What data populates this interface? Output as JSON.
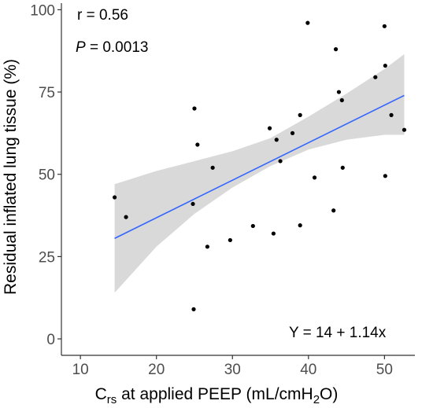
{
  "chart_data": {
    "type": "scatter",
    "xlabel": {
      "main": "C",
      "sub": "rs",
      "rest": " at applied PEEP (mL/cmH",
      "sub2": "2",
      "end": "O)"
    },
    "ylabel": "Residual inflated lung tissue (%)",
    "xlim": [
      7.5,
      54
    ],
    "ylim": [
      -5,
      102
    ],
    "x_ticks": [
      10,
      20,
      30,
      40,
      50
    ],
    "y_ticks": [
      0,
      25,
      50,
      75,
      100
    ],
    "x_tick_labels": [
      "10",
      "20",
      "30",
      "40",
      "50"
    ],
    "y_tick_labels": [
      "0",
      "25",
      "50",
      "75",
      "100"
    ],
    "grid": false,
    "points": [
      {
        "x": 14.5,
        "y": 43
      },
      {
        "x": 16,
        "y": 37
      },
      {
        "x": 24.8,
        "y": 41
      },
      {
        "x": 25,
        "y": 70
      },
      {
        "x": 25.4,
        "y": 59
      },
      {
        "x": 24.9,
        "y": 9
      },
      {
        "x": 26.7,
        "y": 28
      },
      {
        "x": 27.4,
        "y": 52
      },
      {
        "x": 29.7,
        "y": 30
      },
      {
        "x": 32.7,
        "y": 34.3
      },
      {
        "x": 34.9,
        "y": 64
      },
      {
        "x": 35.4,
        "y": 32
      },
      {
        "x": 35.8,
        "y": 60.5
      },
      {
        "x": 36.3,
        "y": 54
      },
      {
        "x": 37.9,
        "y": 62.5
      },
      {
        "x": 38.9,
        "y": 68
      },
      {
        "x": 38.9,
        "y": 34.5
      },
      {
        "x": 39.9,
        "y": 96
      },
      {
        "x": 40.8,
        "y": 49
      },
      {
        "x": 43.3,
        "y": 39
      },
      {
        "x": 43.6,
        "y": 88
      },
      {
        "x": 44,
        "y": 75
      },
      {
        "x": 44.4,
        "y": 72.5
      },
      {
        "x": 44.5,
        "y": 52
      },
      {
        "x": 48.8,
        "y": 79.5
      },
      {
        "x": 50,
        "y": 95
      },
      {
        "x": 50.1,
        "y": 83
      },
      {
        "x": 50.1,
        "y": 49.5
      },
      {
        "x": 50.9,
        "y": 68
      },
      {
        "x": 52.6,
        "y": 63.5
      }
    ],
    "fit": {
      "intercept": 14,
      "slope": 1.14,
      "x_range": [
        14.5,
        52.6
      ],
      "ci": [
        {
          "x": 14.5,
          "lower": 14,
          "upper": 47
        },
        {
          "x": 20,
          "lower": 28,
          "upper": 51
        },
        {
          "x": 25,
          "lower": 38,
          "upper": 54
        },
        {
          "x": 30,
          "lower": 46,
          "upper": 57
        },
        {
          "x": 35,
          "lower": 52.5,
          "upper": 61
        },
        {
          "x": 40,
          "lower": 57.5,
          "upper": 67.5
        },
        {
          "x": 45,
          "lower": 60.5,
          "upper": 74.5
        },
        {
          "x": 50,
          "lower": 62,
          "upper": 82
        },
        {
          "x": 52.6,
          "lower": 62,
          "upper": 86.5
        }
      ]
    },
    "annotations": {
      "r": "r = 0.56",
      "p_symbol": "P",
      "p_value": " = 0.0013",
      "equation": "Y = 14 + 1.14x"
    },
    "colors": {
      "line": "#3366ff",
      "ci_band": "#d9d9d9",
      "points": "#000000",
      "axis": "#333333",
      "tick_text": "#4d4d4d"
    }
  }
}
